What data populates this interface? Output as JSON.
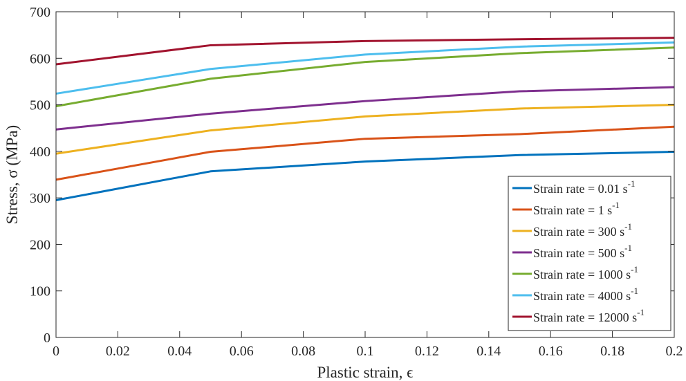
{
  "chart_data": {
    "type": "line",
    "title": "",
    "xlabel": "Plastic strain, ϵ",
    "ylabel": "Stress, σ (MPa)",
    "xlim": [
      0,
      0.2
    ],
    "ylim": [
      0,
      700
    ],
    "xticks": [
      0,
      0.02,
      0.04,
      0.06,
      0.08,
      0.1,
      0.12,
      0.14,
      0.16,
      0.18,
      0.2
    ],
    "yticks": [
      0,
      100,
      200,
      300,
      400,
      500,
      600,
      700
    ],
    "grid": false,
    "legend_position": "bottom-right",
    "x": [
      0,
      0.05,
      0.1,
      0.15,
      0.2
    ],
    "series": [
      {
        "name": "Strain rate = 0.01 s",
        "superscript": "-1",
        "color": "#0072BD",
        "values": [
          295,
          357,
          378,
          392,
          399
        ]
      },
      {
        "name": "Strain rate = 1 s",
        "superscript": "-1",
        "color": "#D95319",
        "values": [
          339,
          399,
          427,
          437,
          453
        ]
      },
      {
        "name": "Strain rate = 300 s",
        "superscript": "-1",
        "color": "#EDB120",
        "values": [
          395,
          445,
          475,
          492,
          500
        ]
      },
      {
        "name": "Strain rate = 500 s",
        "superscript": "-1",
        "color": "#7E2F8E",
        "values": [
          447,
          481,
          508,
          529,
          538
        ]
      },
      {
        "name": "Strain rate = 1000 s",
        "superscript": "-1",
        "color": "#77AC30",
        "values": [
          497,
          556,
          592,
          611,
          623
        ]
      },
      {
        "name": "Strain rate = 4000 s",
        "superscript": "-1",
        "color": "#4DBEEE",
        "values": [
          524,
          577,
          608,
          625,
          634
        ]
      },
      {
        "name": "Strain rate = 12000 s",
        "superscript": "-1",
        "color": "#A2142F",
        "values": [
          587,
          628,
          637,
          641,
          644
        ]
      }
    ]
  }
}
